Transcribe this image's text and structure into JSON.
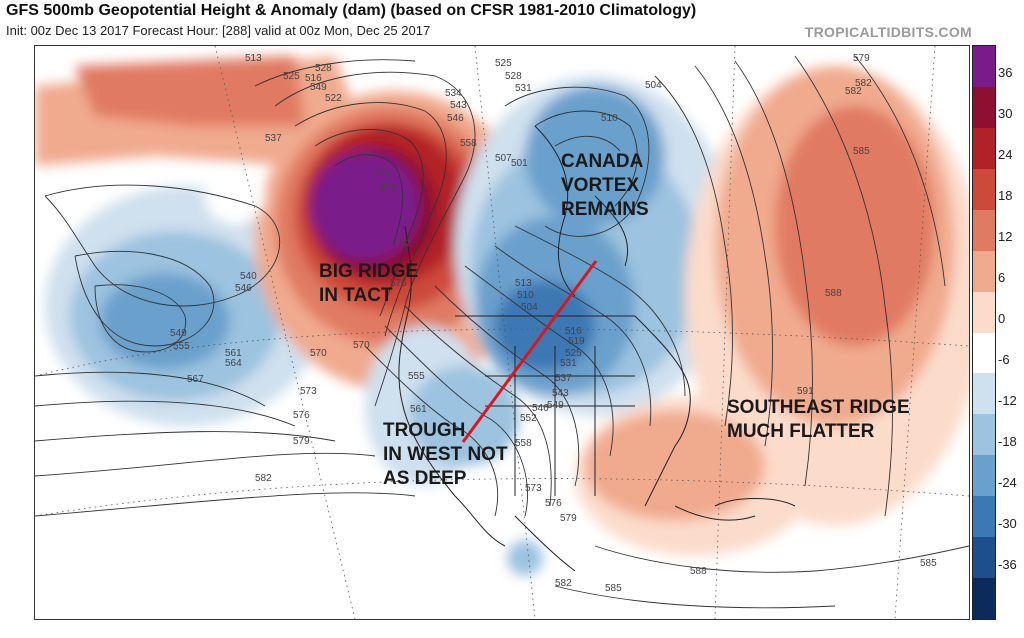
{
  "header": {
    "title": "GFS 500mb Geopotential Height & Anomaly (dam) (based on CFSR 1981-2010 Climatology)",
    "subtitle": "Init: 00z Dec 13 2017   Forecast Hour: [288]   valid at 00z Mon, Dec 25 2017",
    "brand": "TROPICALTIDBITS.COM"
  },
  "colorbar": {
    "labels": [
      "36",
      "30",
      "24",
      "18",
      "12",
      "6",
      "0",
      "-6",
      "-12",
      "-18",
      "-24",
      "-30",
      "-36"
    ],
    "colors": [
      "#7a1b8a",
      "#8e1030",
      "#b22028",
      "#cd4a3a",
      "#e07a62",
      "#f0aa8e",
      "#fbdccb",
      "#ffffff",
      "#cfe0ee",
      "#9cc3df",
      "#6aa0cc",
      "#3c78b4",
      "#1d4f8c",
      "#0c2a5c"
    ]
  },
  "annotations": {
    "canada": [
      "CANADA",
      "VORTEX",
      "REMAINS"
    ],
    "big_ridge": [
      "BIG RIDGE",
      "IN TACT"
    ],
    "trough": [
      "TROUGH",
      "IN WEST NOT",
      "AS DEEP"
    ],
    "southeast": [
      "SOUTHEAST RIDGE",
      "MUCH FLATTER"
    ]
  },
  "contour_labels": [
    "513",
    "525",
    "528",
    "516",
    "549",
    "522",
    "537",
    "534",
    "543",
    "546",
    "558",
    "567",
    "573",
    "582",
    "576",
    "540",
    "546",
    "549",
    "555",
    "561",
    "564",
    "567",
    "570",
    "570",
    "573",
    "576",
    "579",
    "582",
    "555",
    "561",
    "558",
    "552",
    "546",
    "549",
    "543",
    "537",
    "531",
    "525",
    "519",
    "516",
    "513",
    "510",
    "504",
    "507",
    "501",
    "510",
    "504",
    "525",
    "528",
    "531",
    "573",
    "576",
    "579",
    "582",
    "585",
    "588",
    "588",
    "585",
    "582",
    "591",
    "579",
    "582",
    "585"
  ]
}
